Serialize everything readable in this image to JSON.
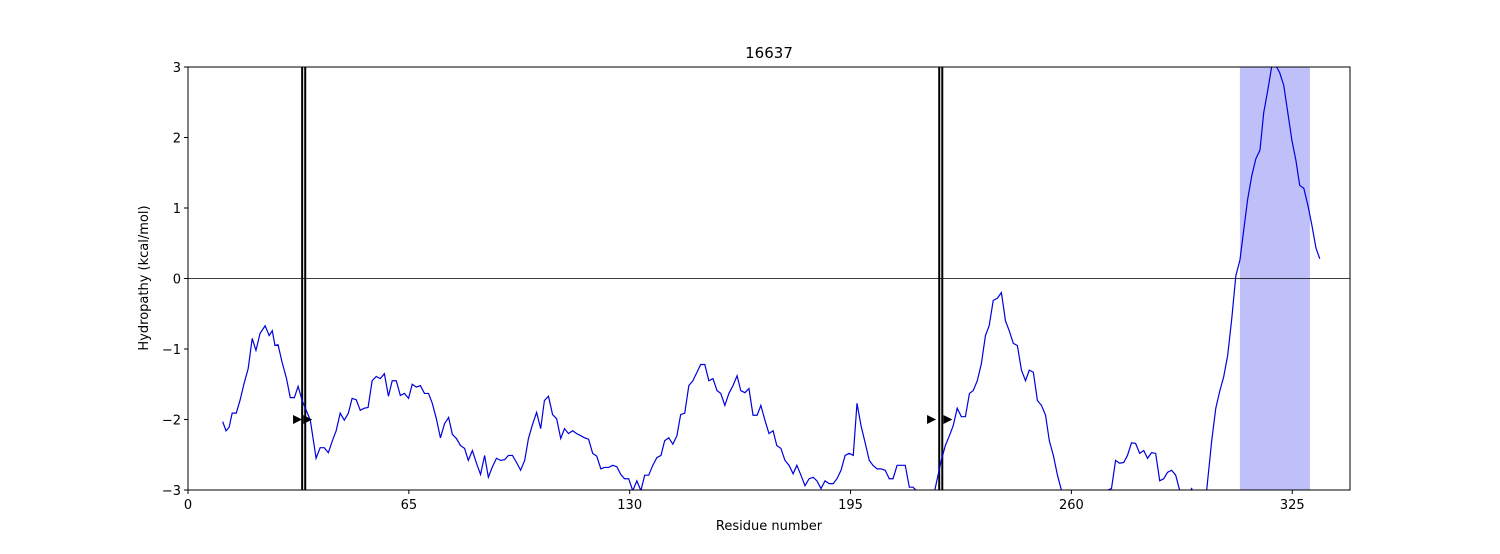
{
  "chart_data": {
    "type": "line",
    "title": "16637",
    "xlabel": "Residue number",
    "ylabel": "Hydropathy (kcal/mol)",
    "xlim": [
      0,
      342
    ],
    "ylim": [
      -3,
      3
    ],
    "xticks": [
      0,
      65,
      130,
      195,
      260,
      325
    ],
    "yticks": [
      {
        "value": -3,
        "label": "−3"
      },
      {
        "value": -2,
        "label": "−2"
      },
      {
        "value": -1,
        "label": "−1"
      },
      0,
      1,
      2,
      3
    ],
    "hlines": [
      0
    ],
    "vlines": [
      33.6,
      34.5,
      221.1,
      222.0
    ],
    "markers": [
      {
        "x": 32.1,
        "y": -2
      },
      {
        "x": 35.1,
        "y": -2
      },
      {
        "x": 218.7,
        "y": -2
      },
      {
        "x": 223.5,
        "y": -2
      }
    ],
    "shaded_region": [
      309.6,
      330.2
    ],
    "shade_color": "#bfbffa",
    "series": [
      {
        "color": "#0000dd",
        "x": [
          10.2,
          11.2,
          12.1,
          13,
          14.2,
          15.3,
          16.5,
          17.7,
          18.9,
          20,
          21.2,
          22.7,
          23.9,
          24.8,
          25.6,
          26.5,
          27.7,
          29,
          30.1,
          31.3,
          32.4,
          33.6,
          34.8,
          36,
          37.7,
          38.9,
          40.1,
          41.3,
          42.5,
          43.6,
          44.8,
          46,
          47.2,
          48.3,
          49.5,
          50.7,
          51.9,
          53,
          54.2,
          55.4,
          56.6,
          57.8,
          59,
          60.1,
          61.3,
          62.5,
          63.7,
          64.9,
          66,
          67.2,
          68.4,
          69.6,
          70.8,
          71.9,
          73.1,
          74.3,
          75.5,
          76.7,
          77.8,
          79,
          80.2,
          81.4,
          82.5,
          83.7,
          84.9,
          86.1,
          87.3,
          88.4,
          89.6,
          90.8,
          92,
          93.2,
          94.3,
          95.5,
          96.7,
          97.9,
          99.1,
          100.2,
          101.4,
          102.6,
          103.8,
          104.9,
          106.1,
          107.3,
          108.5,
          109.7,
          110.8,
          112,
          113.2,
          114.4,
          115.6,
          116.7,
          117.9,
          119.1,
          120.3,
          121.5,
          122.6,
          123.8,
          125,
          126.2,
          127.4,
          128.5,
          129.7,
          130.9,
          132.1,
          133.3,
          134.4,
          135.6,
          136.8,
          138,
          139.2,
          140.3,
          141.5,
          142.7,
          143.9,
          145,
          146.2,
          147.4,
          148.6,
          149.8,
          150.9,
          152.1,
          153.3,
          154.5,
          155.7,
          156.8,
          158,
          159.2,
          160.4,
          161.6,
          162.7,
          163.9,
          165.1,
          166.3,
          167.5,
          168.6,
          169.8,
          171,
          172.2,
          173.3,
          174.5,
          175.7,
          176.9,
          178.1,
          179.2,
          180.4,
          181.6,
          182.8,
          184,
          185.1,
          186.3,
          187.5,
          188.7,
          189.9,
          191,
          192.2,
          193.4,
          194.6,
          195.8,
          196.9,
          198.1,
          199.3,
          200.5,
          201.6,
          202.8,
          204,
          205.2,
          206.4,
          207.5,
          208.7,
          209.9,
          211.1,
          212.3,
          213.4,
          214.6,
          218,
          221.7,
          222.9,
          224.1,
          225.2,
          226.4,
          227.6,
          228.8,
          230,
          231.1,
          232.3,
          233.5,
          234.7,
          235.8,
          237,
          238.2,
          239.4,
          240.6,
          241.7,
          242.9,
          244.1,
          245.3,
          246.5,
          247.6,
          248.8,
          250,
          251.2,
          252.4,
          253.5,
          254.7,
          255.9,
          257.1,
          260,
          265,
          270.3,
          271.8,
          273,
          274.2,
          275.4,
          276.5,
          277.7,
          278.9,
          280.1,
          281.3,
          282.4,
          283.6,
          284.8,
          286,
          287.2,
          288.3,
          289.5,
          290.7,
          291.9,
          293.5,
          295.4,
          297,
          299.8,
          301.3,
          302.5,
          303.7,
          304.8,
          306,
          307.2,
          308.4,
          309.6,
          310.7,
          311.9,
          313.1,
          314.3,
          315.5,
          316.6,
          317.8,
          319,
          320.2,
          321.3,
          322.5,
          323.7,
          324.9,
          326.1,
          327.2,
          328.4,
          329.6,
          330.8,
          332,
          333.1
        ],
        "values": [
          -2.03,
          -2.16,
          -2.11,
          -1.91,
          -1.91,
          -1.73,
          -1.49,
          -1.28,
          -0.85,
          -1.02,
          -0.78,
          -0.67,
          -0.81,
          -0.74,
          -0.95,
          -0.94,
          -1.19,
          -1.42,
          -1.69,
          -1.69,
          -1.53,
          -1.73,
          -1.87,
          -2.01,
          -2.55,
          -2.4,
          -2.4,
          -2.47,
          -2.3,
          -2.16,
          -1.91,
          -2.01,
          -1.91,
          -1.7,
          -1.72,
          -1.87,
          -1.84,
          -1.83,
          -1.45,
          -1.39,
          -1.42,
          -1.35,
          -1.67,
          -1.45,
          -1.45,
          -1.66,
          -1.63,
          -1.7,
          -1.5,
          -1.54,
          -1.52,
          -1.63,
          -1.63,
          -1.77,
          -1.99,
          -2.26,
          -2.06,
          -1.97,
          -2.21,
          -2.27,
          -2.37,
          -2.41,
          -2.58,
          -2.44,
          -2.62,
          -2.78,
          -2.51,
          -2.82,
          -2.67,
          -2.55,
          -2.58,
          -2.57,
          -2.51,
          -2.51,
          -2.61,
          -2.72,
          -2.58,
          -2.27,
          -2.07,
          -1.9,
          -2.13,
          -1.73,
          -1.67,
          -1.93,
          -1.99,
          -2.27,
          -2.13,
          -2.2,
          -2.16,
          -2.2,
          -2.23,
          -2.26,
          -2.28,
          -2.48,
          -2.52,
          -2.7,
          -2.68,
          -2.68,
          -2.65,
          -2.67,
          -2.78,
          -2.84,
          -2.84,
          -3.01,
          -2.87,
          -3.01,
          -2.79,
          -2.79,
          -2.65,
          -2.54,
          -2.51,
          -2.3,
          -2.26,
          -2.35,
          -2.23,
          -1.93,
          -1.91,
          -1.52,
          -1.45,
          -1.33,
          -1.22,
          -1.22,
          -1.45,
          -1.42,
          -1.59,
          -1.63,
          -1.8,
          -1.63,
          -1.52,
          -1.38,
          -1.59,
          -1.62,
          -1.56,
          -1.94,
          -1.94,
          -1.8,
          -2.01,
          -2.2,
          -2.16,
          -2.37,
          -2.41,
          -2.58,
          -2.65,
          -2.77,
          -2.65,
          -2.79,
          -2.94,
          -2.84,
          -2.82,
          -2.87,
          -2.98,
          -2.87,
          -2.91,
          -2.91,
          -2.84,
          -2.72,
          -2.51,
          -2.48,
          -2.51,
          -1.77,
          -2.09,
          -2.33,
          -2.58,
          -2.65,
          -2.7,
          -2.7,
          -2.72,
          -2.84,
          -2.84,
          -2.65,
          -2.65,
          -2.65,
          -2.96,
          -2.96,
          -3.02,
          -3.4,
          -2.58,
          -2.37,
          -2.23,
          -2.09,
          -1.84,
          -1.96,
          -1.96,
          -1.63,
          -1.59,
          -1.45,
          -1.21,
          -0.81,
          -0.67,
          -0.31,
          -0.28,
          -0.2,
          -0.6,
          -0.74,
          -0.92,
          -0.95,
          -1.3,
          -1.45,
          -1.3,
          -1.33,
          -1.73,
          -1.8,
          -1.94,
          -2.3,
          -2.51,
          -2.79,
          -3.01,
          -3.4,
          -3.4,
          -3.01,
          -2.98,
          -2.58,
          -2.62,
          -2.61,
          -2.51,
          -2.33,
          -2.34,
          -2.48,
          -2.44,
          -2.55,
          -2.47,
          -2.48,
          -2.87,
          -2.84,
          -2.75,
          -2.72,
          -2.79,
          -3.01,
          -3.1,
          -2.98,
          -3.2,
          -3.01,
          -2.3,
          -1.84,
          -1.59,
          -1.4,
          -1.09,
          -0.57,
          0.04,
          0.26,
          0.68,
          1.13,
          1.46,
          1.7,
          1.82,
          2.35,
          2.67,
          3.02,
          3.02,
          2.92,
          2.74,
          2.35,
          1.96,
          1.67,
          1.32,
          1.28,
          1.04,
          0.75,
          0.43,
          0.28
        ]
      }
    ]
  }
}
